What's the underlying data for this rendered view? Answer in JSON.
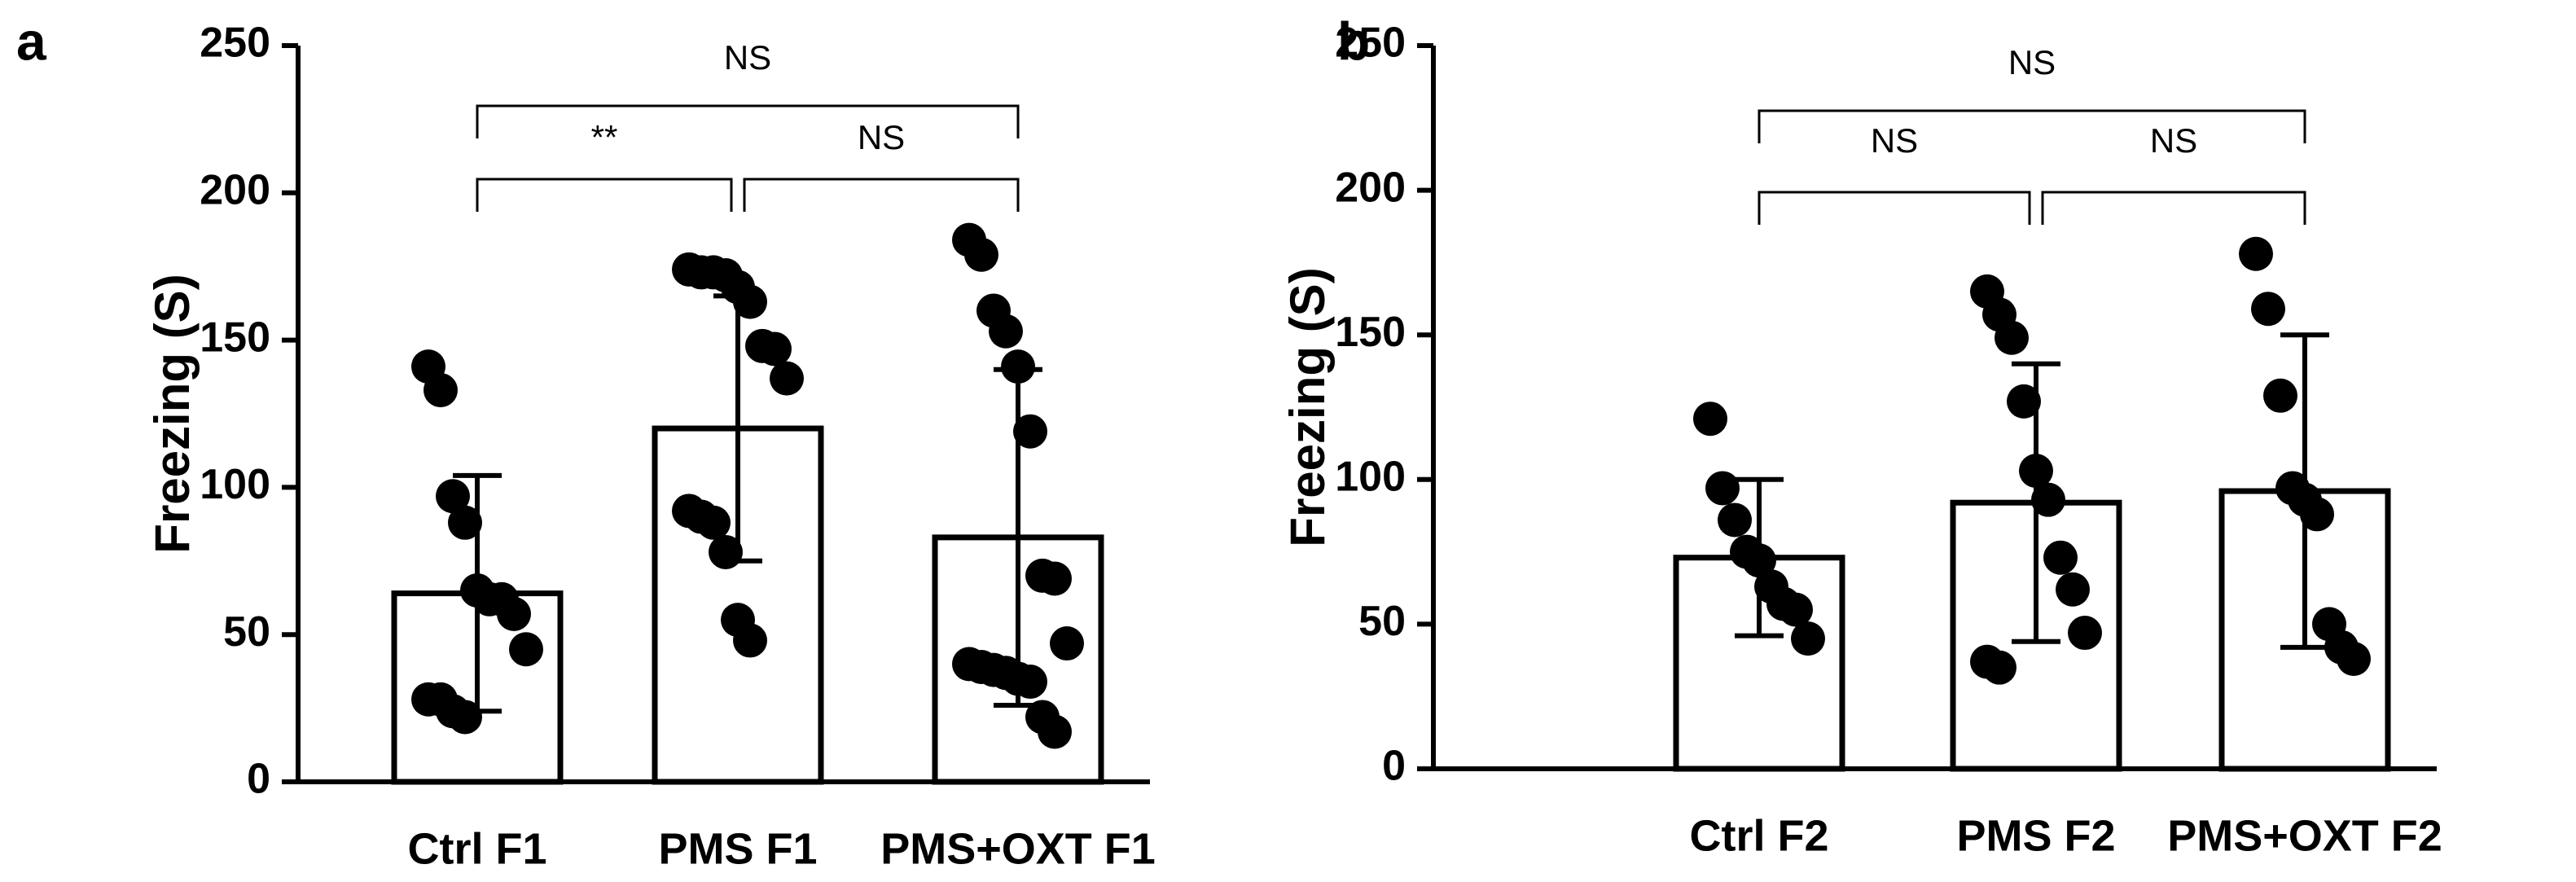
{
  "chart_data": [
    {
      "type": "bar",
      "panel_label": "a",
      "ylabel": "Freezing (S)",
      "categories": [
        "Ctrl F1",
        "PMS F1",
        "PMS+OXT F1"
      ],
      "values": [
        64,
        120,
        83
      ],
      "errors": [
        40,
        45,
        57
      ],
      "points": [
        [
          141,
          133,
          97,
          88,
          65,
          62,
          62,
          57,
          45,
          28,
          28,
          24,
          22
        ],
        [
          174,
          173,
          173,
          172,
          168,
          163,
          148,
          147,
          137,
          92,
          90,
          88,
          78,
          55,
          48
        ],
        [
          184,
          179,
          160,
          153,
          141,
          119,
          70,
          69,
          47,
          40,
          39,
          38,
          37,
          35,
          34,
          22,
          17
        ]
      ],
      "annotations": [
        "**",
        "NS",
        "NS"
      ],
      "ylim": [
        0,
        250
      ],
      "yticks": [
        0,
        50,
        100,
        150,
        200,
        250
      ],
      "color": "#ffffff"
    },
    {
      "type": "bar",
      "panel_label": "b",
      "ylabel": "Freezing (S)",
      "categories": [
        "Ctrl F2",
        "PMS F2",
        "PMS+OXT F2"
      ],
      "values": [
        73,
        92,
        96
      ],
      "errors": [
        27,
        48,
        54
      ],
      "points": [
        [
          121,
          97,
          86,
          75,
          72,
          63,
          57,
          55,
          45
        ],
        [
          165,
          157,
          149,
          127,
          103,
          93,
          73,
          62,
          47,
          37,
          35
        ],
        [
          178,
          159,
          129,
          97,
          93,
          88,
          50,
          42,
          38
        ]
      ],
      "annotations": [
        "NS",
        "NS",
        "NS"
      ],
      "ylim": [
        0,
        250
      ],
      "yticks": [
        0,
        50,
        100,
        150,
        200,
        250
      ],
      "color": "#ffffff"
    }
  ]
}
